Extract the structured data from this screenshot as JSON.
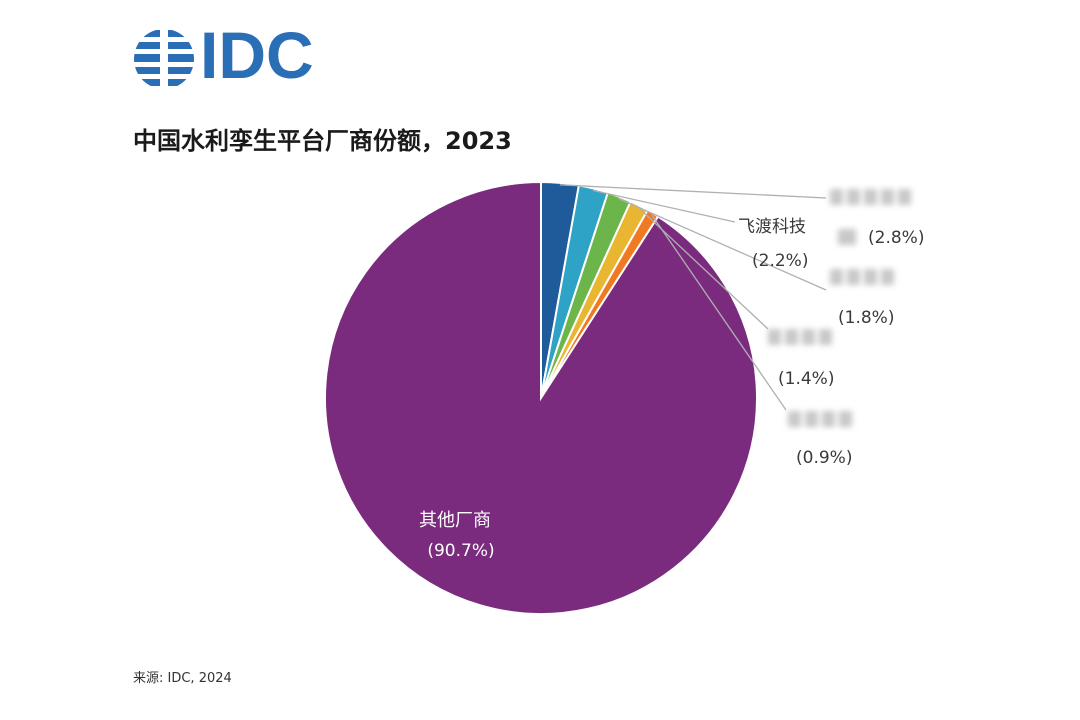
{
  "logo": {
    "text": "IDC"
  },
  "title": "中国水利孪生平台厂商份额，2023",
  "source": "来源: IDC, 2024",
  "colors": {
    "logo": "#2a6fb6",
    "others": "#7a2b7e",
    "vendor_1": "#1f5a9a",
    "vendor_2": "#2ea3c6",
    "vendor_3": "#6bb54a",
    "vendor_4": "#e8b631",
    "vendor_5": "#f07a22"
  },
  "chart_data": {
    "type": "pie",
    "title": "中国水利孪生平台厂商份额，2023",
    "slices": [
      {
        "name": "",
        "value": 2.8,
        "label": "(2.8%)",
        "obscured": true
      },
      {
        "name": "飞渡科技",
        "value": 2.2,
        "label": "(2.2%)",
        "obscured": false
      },
      {
        "name": "",
        "value": 1.8,
        "label": "(1.8%)",
        "obscured": true
      },
      {
        "name": "",
        "value": 1.4,
        "label": "(1.4%)",
        "obscured": true
      },
      {
        "name": "",
        "value": 0.9,
        "label": "(0.9%)",
        "obscured": true
      },
      {
        "name": "其他厂商",
        "value": 90.7,
        "label": "(90.7%)",
        "obscured": false
      }
    ],
    "start_angle": "12 o'clock",
    "direction": "clockwise",
    "labels": "outside with leader lines for small slices, inside for largest slice"
  }
}
